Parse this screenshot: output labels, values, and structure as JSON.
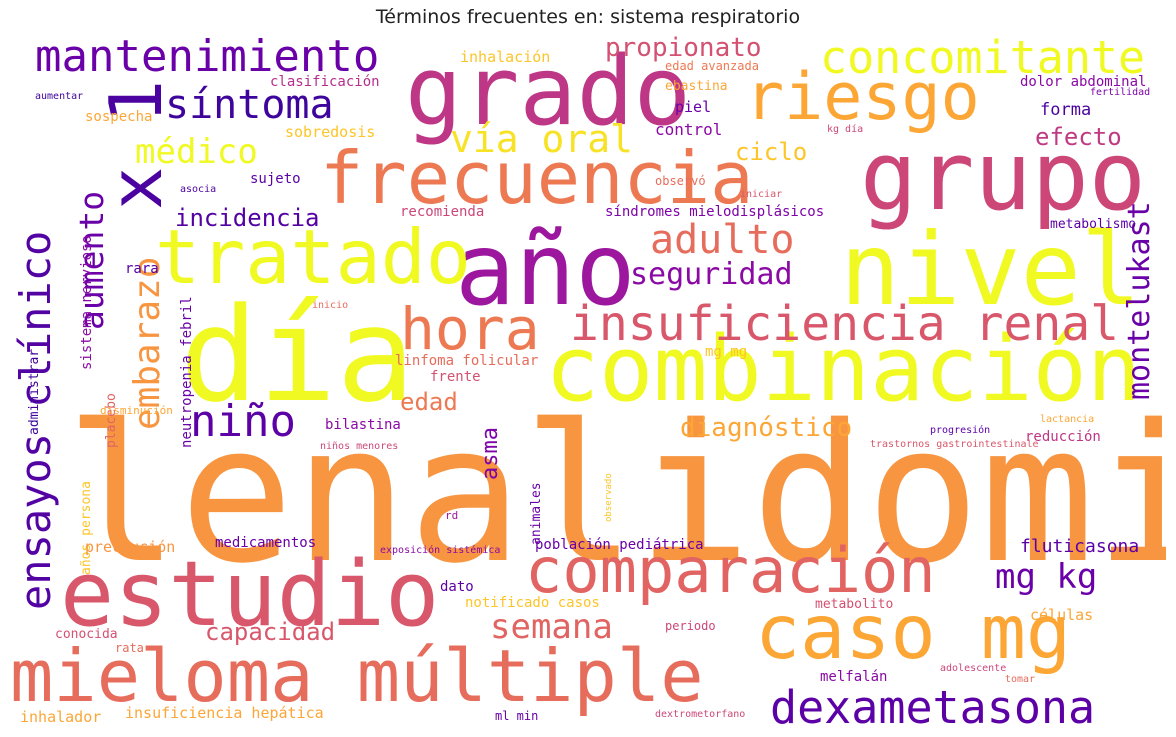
{
  "title": "Términos frecuentes en: sistema respiratorio",
  "words": [
    {
      "text": "lenalidomida",
      "color": "#f89540"
    },
    {
      "text": "día",
      "color": "#f0f921"
    },
    {
      "text": "año",
      "color": "#9c179e"
    },
    {
      "text": "grupo",
      "color": "#cc4778"
    },
    {
      "text": "nivel",
      "color": "#f0f921"
    },
    {
      "text": "grado",
      "color": "#bd3786"
    },
    {
      "text": "combinación",
      "color": "#f0f921"
    },
    {
      "text": "estudio",
      "color": "#d8576b"
    },
    {
      "text": "frecuencia",
      "color": "#ed7953"
    },
    {
      "text": "tratado",
      "color": "#f0f921"
    },
    {
      "text": "mieloma múltiple",
      "color": "#e66c5c"
    },
    {
      "text": "caso mg",
      "color": "#fca636"
    },
    {
      "text": "comparación",
      "color": "#e16462"
    },
    {
      "text": "riesgo",
      "color": "#fca636"
    },
    {
      "text": "insuficiencia renal",
      "color": "#d8576b"
    },
    {
      "text": "mantenimiento",
      "color": "#6a00a8"
    },
    {
      "text": "hora",
      "color": "#ed7953"
    },
    {
      "text": "dexametasona",
      "color": "#5c01a6"
    },
    {
      "text": "concomitante",
      "color": "#f0f921"
    },
    {
      "text": "ensayos clínico",
      "color": "#5302a3"
    },
    {
      "text": "x 1",
      "color": "#4c02a1"
    },
    {
      "text": "síntoma",
      "color": "#3e049c"
    },
    {
      "text": "vía oral",
      "color": "#f7e225"
    },
    {
      "text": "adulto",
      "color": "#e66c5c"
    },
    {
      "text": "niño",
      "color": "#5c01a6"
    },
    {
      "text": "embarazo",
      "color": "#f89540"
    },
    {
      "text": "aumento",
      "color": "#6a00a8"
    },
    {
      "text": "médico",
      "color": "#f0f921"
    },
    {
      "text": "seguridad",
      "color": "#8b0aa5"
    },
    {
      "text": "montelukast",
      "color": "#6a00a8"
    },
    {
      "text": "mg kg",
      "color": "#6a00a8"
    },
    {
      "text": "semana",
      "color": "#e16462"
    },
    {
      "text": "propionato",
      "color": "#d35171"
    },
    {
      "text": "diagnóstico",
      "color": "#fca636"
    },
    {
      "text": "ciclo",
      "color": "#fdc527"
    },
    {
      "text": "efecto",
      "color": "#c03a83"
    },
    {
      "text": "incidencia",
      "color": "#5302a3"
    },
    {
      "text": "capacidad",
      "color": "#d8576b"
    },
    {
      "text": "edad",
      "color": "#ed7953"
    },
    {
      "text": "asma",
      "color": "#7e03a8"
    },
    {
      "text": "fluticasona",
      "color": "#5c01a6"
    },
    {
      "text": "forma",
      "color": "#4c02a1"
    },
    {
      "text": "piel",
      "color": "#6a00a8"
    },
    {
      "text": "control",
      "color": "#8b0aa5"
    },
    {
      "text": "sujeto",
      "color": "#5c01a6"
    },
    {
      "text": "observó",
      "color": "#e66c5c"
    },
    {
      "text": "inhalación",
      "color": "#fdc527"
    },
    {
      "text": "clasificación",
      "color": "#b52f8c"
    },
    {
      "text": "edad avanzada",
      "color": "#ed7953"
    },
    {
      "text": "ebastina",
      "color": "#fca636"
    },
    {
      "text": "dolor abdominal",
      "color": "#8b0aa5"
    },
    {
      "text": "sospecha",
      "color": "#fca636"
    },
    {
      "text": "sobredosis",
      "color": "#fdc527"
    },
    {
      "text": "aumentar",
      "color": "#3e049c"
    },
    {
      "text": "fertilidad",
      "color": "#7e03a8"
    },
    {
      "text": "kg día",
      "color": "#cc4778"
    },
    {
      "text": "asocia",
      "color": "#4c02a1"
    },
    {
      "text": "iniciar",
      "color": "#d8576b"
    },
    {
      "text": "recomienda",
      "color": "#cc4778"
    },
    {
      "text": "síndromes mielodisplásicos",
      "color": "#7e03a8"
    },
    {
      "text": "metabolismo",
      "color": "#5c01a6"
    },
    {
      "text": "sistema nervioso",
      "color": "#8b0aa5"
    },
    {
      "text": "rara",
      "color": "#5302a3"
    },
    {
      "text": "neutropenia febril",
      "color": "#6a00a8"
    },
    {
      "text": "inicio",
      "color": "#e66c5c"
    },
    {
      "text": "linfoma folicular",
      "color": "#e66c5c"
    },
    {
      "text": "frente",
      "color": "#d35171"
    },
    {
      "text": "mg mg",
      "color": "#fdc527"
    },
    {
      "text": "placebo",
      "color": "#e16462"
    },
    {
      "text": "administrar",
      "color": "#3e049c"
    },
    {
      "text": "disminución",
      "color": "#fca636"
    },
    {
      "text": "bilastina",
      "color": "#8b0aa5"
    },
    {
      "text": "niños menores",
      "color": "#cc4778"
    },
    {
      "text": "progresión",
      "color": "#5c01a6"
    },
    {
      "text": "reducción",
      "color": "#bd3786"
    },
    {
      "text": "trastornos gastrointestinale",
      "color": "#d8576b"
    },
    {
      "text": "lactancia",
      "color": "#fca636"
    },
    {
      "text": "años persona",
      "color": "#fdc527"
    },
    {
      "text": "observado",
      "color": "#fdc527"
    },
    {
      "text": "animales",
      "color": "#6a00a8"
    },
    {
      "text": "rd",
      "color": "#9c179e"
    },
    {
      "text": "precaución",
      "color": "#f89540"
    },
    {
      "text": "medicamentos",
      "color": "#6a00a8"
    },
    {
      "text": "exposición sistémica",
      "color": "#8b0aa5"
    },
    {
      "text": "población pediátrica",
      "color": "#6a00a8"
    },
    {
      "text": "dato",
      "color": "#5c01a6"
    },
    {
      "text": "notificado casos",
      "color": "#fdc527"
    },
    {
      "text": "metabolito",
      "color": "#d35171"
    },
    {
      "text": "células",
      "color": "#fca636"
    },
    {
      "text": "conocida",
      "color": "#d35171"
    },
    {
      "text": "rata",
      "color": "#e66c5c"
    },
    {
      "text": "periodo",
      "color": "#cc4778"
    },
    {
      "text": "adolescente",
      "color": "#cc4778"
    },
    {
      "text": "tomar",
      "color": "#e66c5c"
    },
    {
      "text": "melfalán",
      "color": "#8b0aa5"
    },
    {
      "text": "inhalador",
      "color": "#fca636"
    },
    {
      "text": "insuficiencia hepática",
      "color": "#fca636"
    },
    {
      "text": "ml min",
      "color": "#6a00a8"
    },
    {
      "text": "dextrometorfano",
      "color": "#cc4778"
    }
  ]
}
